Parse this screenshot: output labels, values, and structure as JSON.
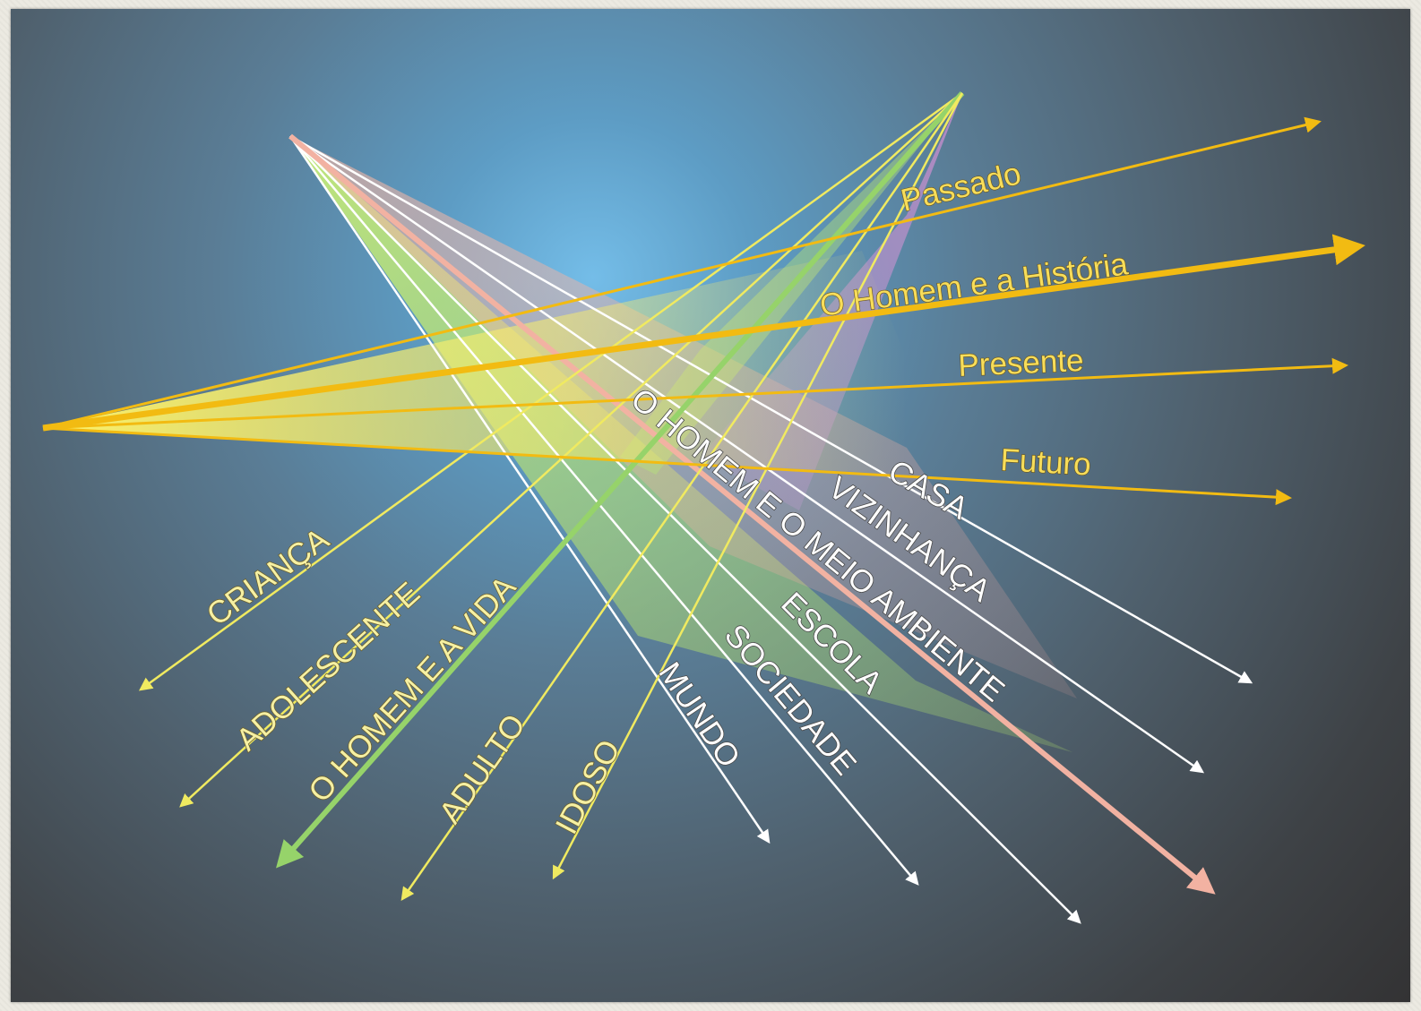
{
  "time_labels": {
    "passado": "Passado",
    "homem_historia": "O Homem e a História",
    "presente": "Presente",
    "futuro": "Futuro"
  },
  "age_labels": {
    "crianca": "CRIANÇA",
    "adolescente": "ADOLESCENTE",
    "homem_vida": "O HOMEM E A VIDA",
    "adulto": "ADULTO",
    "idoso": "IDOSO"
  },
  "space_labels": {
    "mundo": "MUNDO",
    "sociedade": "SOCIEDADE",
    "escola": "ESCOLA",
    "homem_meio": "O HOMEM E O MEIO AMBIENTE",
    "vizinhanca": "VIZINHANÇA",
    "casa": "CASA"
  },
  "colors": {
    "time_arrows": "#f2bb12",
    "age_arrows": "#f0ea60",
    "vida_arrow": "#96d36a",
    "space_arrows": "#ffffff",
    "meio_arrow": "#f2b2a2"
  }
}
